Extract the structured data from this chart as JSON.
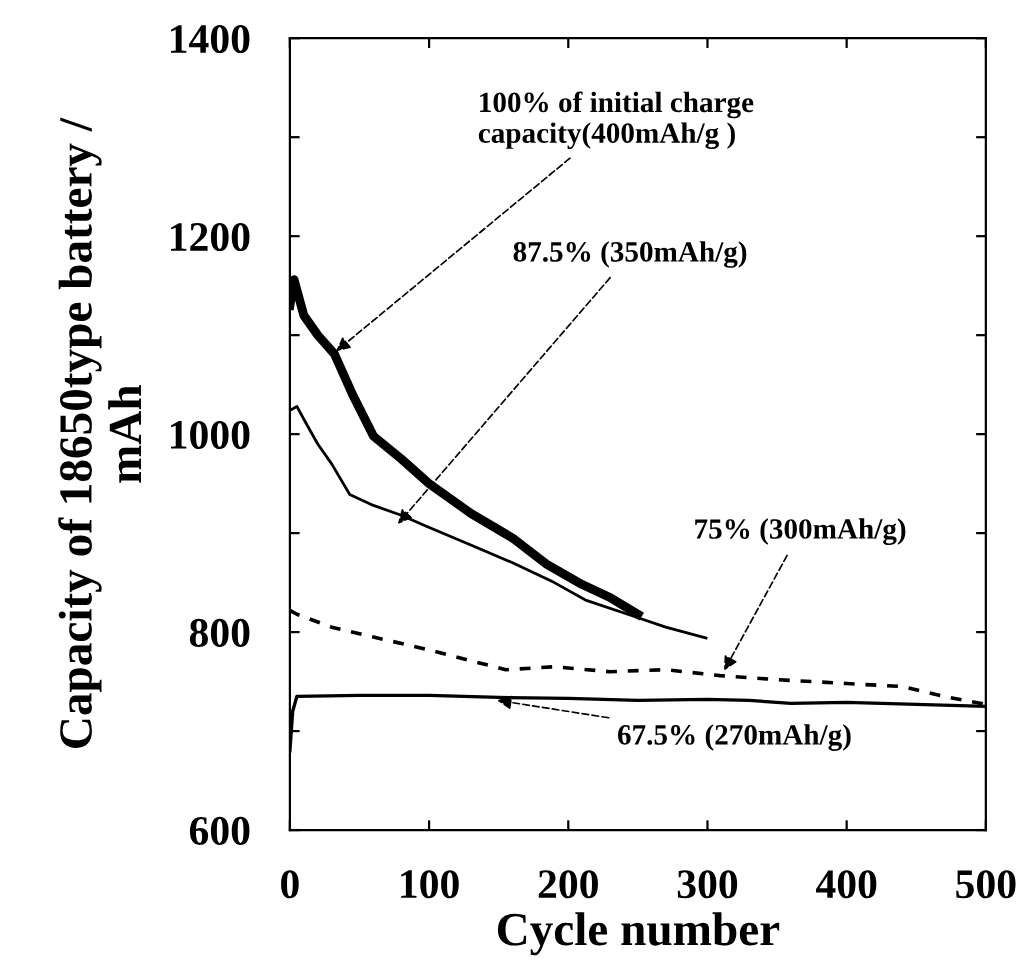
{
  "chart_data": {
    "type": "line",
    "xlabel": "Cycle number",
    "ylabel": "Capacity of 18650type battery /\nmAh",
    "xlim": [
      0,
      500
    ],
    "ylim": [
      600,
      1400
    ],
    "xticks": [
      0,
      100,
      200,
      300,
      400,
      500
    ],
    "yticks": [
      600,
      {
        "value": 700,
        "label": null
      },
      800,
      {
        "value": 900,
        "label": null
      },
      1000,
      {
        "value": 1100,
        "label": null
      },
      1200,
      {
        "value": 1300,
        "label": null
      },
      1400
    ],
    "grid": false,
    "legend": false,
    "marker": "none",
    "series": [
      {
        "color": "#000000",
        "line_style": "solid",
        "x": [
          0,
          3,
          10,
          20,
          32,
          45,
          60,
          80,
          100,
          130,
          160,
          184,
          210,
          230,
          250
        ],
        "values": [
          1130,
          1156,
          1120,
          1100,
          1081,
          1040,
          998,
          975,
          950,
          920,
          895,
          869,
          848,
          835,
          818
        ]
      },
      {
        "color": "#000000",
        "line_style": "solid",
        "x": [
          0,
          5,
          12,
          20,
          30,
          43,
          60,
          80,
          98,
          130,
          160,
          190,
          213,
          247,
          270,
          299
        ],
        "values": [
          1024,
          1028,
          1010,
          990,
          970,
          939,
          928,
          918,
          907,
          888,
          870,
          850,
          832,
          816,
          805,
          794
        ]
      },
      {
        "color": "#000000",
        "line_style": "dashed",
        "x": [
          0,
          5,
          30,
          60,
          100,
          155,
          190,
          230,
          270,
          309,
          350,
          400,
          440,
          470,
          500
        ],
        "values": [
          822,
          818,
          805,
          795,
          782,
          762,
          765,
          760,
          762,
          756,
          752,
          748,
          745,
          735,
          727
        ]
      },
      {
        "color": "#000000",
        "line_style": "solid",
        "x": [
          0,
          2,
          5,
          50,
          100,
          150,
          200,
          250,
          300,
          330,
          360,
          400,
          450,
          500
        ],
        "values": [
          680,
          720,
          735,
          736,
          736,
          734,
          733,
          731,
          732,
          731,
          728,
          729,
          727,
          725
        ]
      }
    ],
    "annotations": [
      {
        "text": "100% of initial charge\ncapacity(400mAh/g )",
        "x": 30,
        "y": 1080
      },
      {
        "text": "87.5% (350mAh/g)",
        "x": 75,
        "y": 905
      },
      {
        "text": "75% (300mAh/g)",
        "x": 310,
        "y": 756
      },
      {
        "text": "67.5% (270mAh/g)",
        "x": 145,
        "y": 732
      }
    ]
  }
}
